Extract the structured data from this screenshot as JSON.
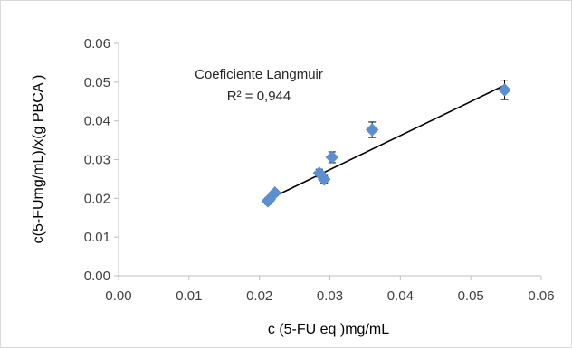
{
  "chart_data": {
    "type": "scatter",
    "title": "",
    "xlabel": "c (5-FU eq )mg/mL",
    "ylabel": "c(5-FUmg/mL)/x(g PBCA )",
    "xlim": [
      0,
      0.06
    ],
    "ylim": [
      0,
      0.06
    ],
    "x_ticks": [
      "0.00",
      "0.01",
      "0.02",
      "0.03",
      "0.04",
      "0.05",
      "0.06"
    ],
    "y_ticks": [
      "0.00",
      "0.01",
      "0.02",
      "0.03",
      "0.04",
      "0.05",
      "0.06"
    ],
    "grid": false,
    "legend": "none",
    "series": [
      {
        "marker": "diamond",
        "color": "#5b8fd0",
        "points": [
          {
            "x": 0.0212,
            "y": 0.0193,
            "err": 0.0008
          },
          {
            "x": 0.0214,
            "y": 0.0197,
            "err": 0.0006
          },
          {
            "x": 0.0222,
            "y": 0.0214,
            "err": 0.0007
          },
          {
            "x": 0.0285,
            "y": 0.0265,
            "err": 0.001
          },
          {
            "x": 0.0292,
            "y": 0.0249,
            "err": 0.001
          },
          {
            "x": 0.0303,
            "y": 0.0306,
            "err": 0.0014
          },
          {
            "x": 0.036,
            "y": 0.0377,
            "err": 0.002
          },
          {
            "x": 0.0548,
            "y": 0.048,
            "err": 0.0025
          }
        ]
      }
    ],
    "trendline": {
      "x": [
        0.021,
        0.0548
      ],
      "y": [
        0.0195,
        0.0492
      ],
      "color": "#000000"
    },
    "annotation": {
      "line1": "Coeficiente Langmuir",
      "line2": "R² = 0,944"
    }
  }
}
